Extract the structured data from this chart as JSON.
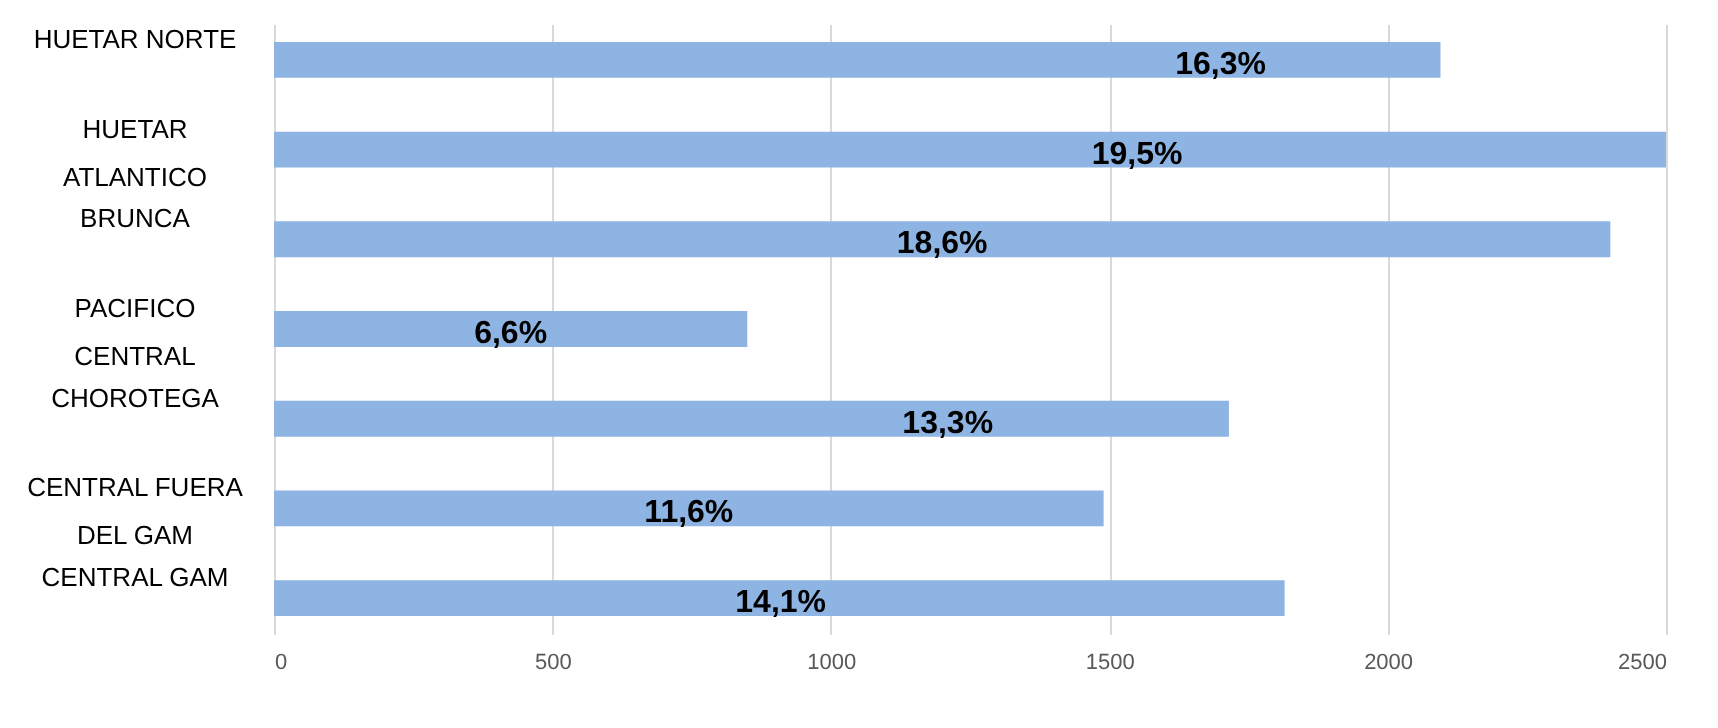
{
  "chart_data": {
    "type": "bar",
    "orientation": "horizontal",
    "categories": [
      "HUETAR NORTE",
      "HUETAR ATLANTICO",
      "BRUNCA",
      "PACIFICO CENTRAL",
      "CHOROTEGA",
      "CENTRAL FUERA DEL GAM",
      "CENTRAL GAM"
    ],
    "values": [
      2095,
      2500,
      2400,
      850,
      1715,
      1490,
      1815
    ],
    "annotations": [
      {
        "text": "16,3%",
        "x": 1700,
        "y": "HUETAR NORTE"
      },
      {
        "text": "19,5%",
        "x": 1550,
        "y": "HUETAR ATLANTICO"
      },
      {
        "text": "18,6%",
        "x": 1200,
        "y": "BRUNCA"
      },
      {
        "text": "6,6%",
        "x": 425,
        "y": "PACIFICO CENTRAL"
      },
      {
        "text": "13,3%",
        "x": 1210,
        "y": "CHOROTEGA"
      },
      {
        "text": "11,6%",
        "x": 745,
        "y": "CENTRAL FUERA DEL GAM"
      },
      {
        "text": "14,1%",
        "x": 910,
        "y": "CENTRAL GAM"
      }
    ],
    "color": "#8db4e2",
    "xlim": [
      0,
      2500
    ],
    "xticks": [
      0,
      500,
      1000,
      1500,
      2000,
      2500
    ],
    "grid": "x"
  }
}
